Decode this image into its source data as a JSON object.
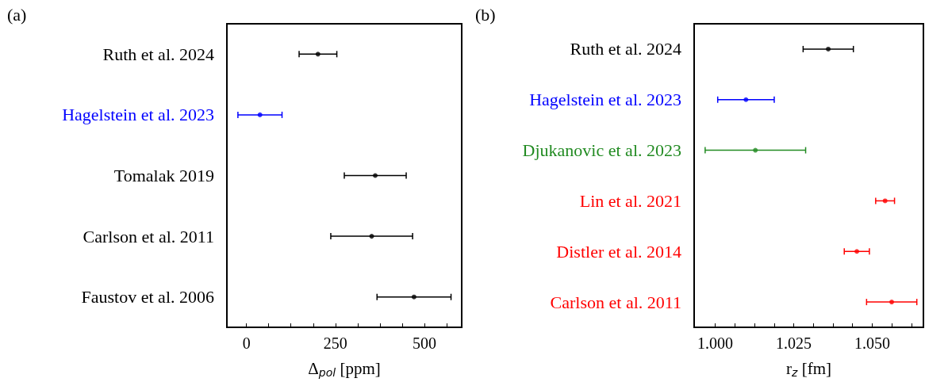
{
  "chart_data": [
    {
      "type": "scatter",
      "title": "(a)",
      "xlabel": "Δ$_{pol}$ [ppm]",
      "orientation": "horizontal",
      "marker": "circle",
      "categories": [
        "Ruth et al. 2024",
        "Hagelstein et al. 2023",
        "Tomalak 2019",
        "Carlson et al. 2011",
        "Faustov et al. 2006"
      ],
      "values": [
        201,
        38,
        362,
        352,
        471
      ],
      "errors": [
        53,
        62,
        87,
        115,
        104
      ],
      "colors": [
        "#000000",
        "#0000ff",
        "#000000",
        "#000000",
        "#000000"
      ],
      "xlim": [
        -55,
        605
      ],
      "xticks": [
        0,
        {
          "value": 62.5,
          "label": null
        },
        {
          "value": 125,
          "label": null
        },
        {
          "value": 187.5,
          "label": null
        },
        250,
        {
          "value": 312.5,
          "label": null
        },
        {
          "value": 375,
          "label": null
        },
        {
          "value": 437.5,
          "label": null
        },
        500,
        {
          "value": 562.5,
          "label": null
        }
      ]
    },
    {
      "type": "scatter",
      "title": "(b)",
      "xlabel": "r$_{z}$ [fm]",
      "orientation": "horizontal",
      "marker": "circle",
      "categories": [
        "Ruth et al. 2024",
        "Hagelstein et al. 2023",
        "Djukanovic et al. 2023",
        "Lin et al. 2021",
        "Distler et al. 2014",
        "Carlson et al. 2011"
      ],
      "values": [
        1.036,
        1.0098,
        1.0128,
        1.0541,
        1.0451,
        1.0562
      ],
      "errors": [
        0.008,
        0.009,
        0.016,
        0.003,
        0.004,
        0.008
      ],
      "colors": [
        "#000000",
        "#0000ff",
        "#228b22",
        "#ff0000",
        "#ff0000",
        "#ff0000"
      ],
      "xlim": [
        0.9933,
        1.0663
      ],
      "xticks": [
        {
          "value": 1,
          "label": "1.000"
        },
        {
          "value": 1.00625,
          "label": null
        },
        {
          "value": 1.0125,
          "label": null
        },
        {
          "value": 1.01875,
          "label": null
        },
        {
          "value": 1.025,
          "label": "1.025"
        },
        {
          "value": 1.03125,
          "label": null
        },
        {
          "value": 1.0375,
          "label": null
        },
        {
          "value": 1.04375,
          "label": null
        },
        {
          "value": 1.05,
          "label": "1.050"
        },
        {
          "value": 1.05625,
          "label": null
        },
        {
          "value": 1.0625,
          "label": null
        }
      ]
    }
  ]
}
